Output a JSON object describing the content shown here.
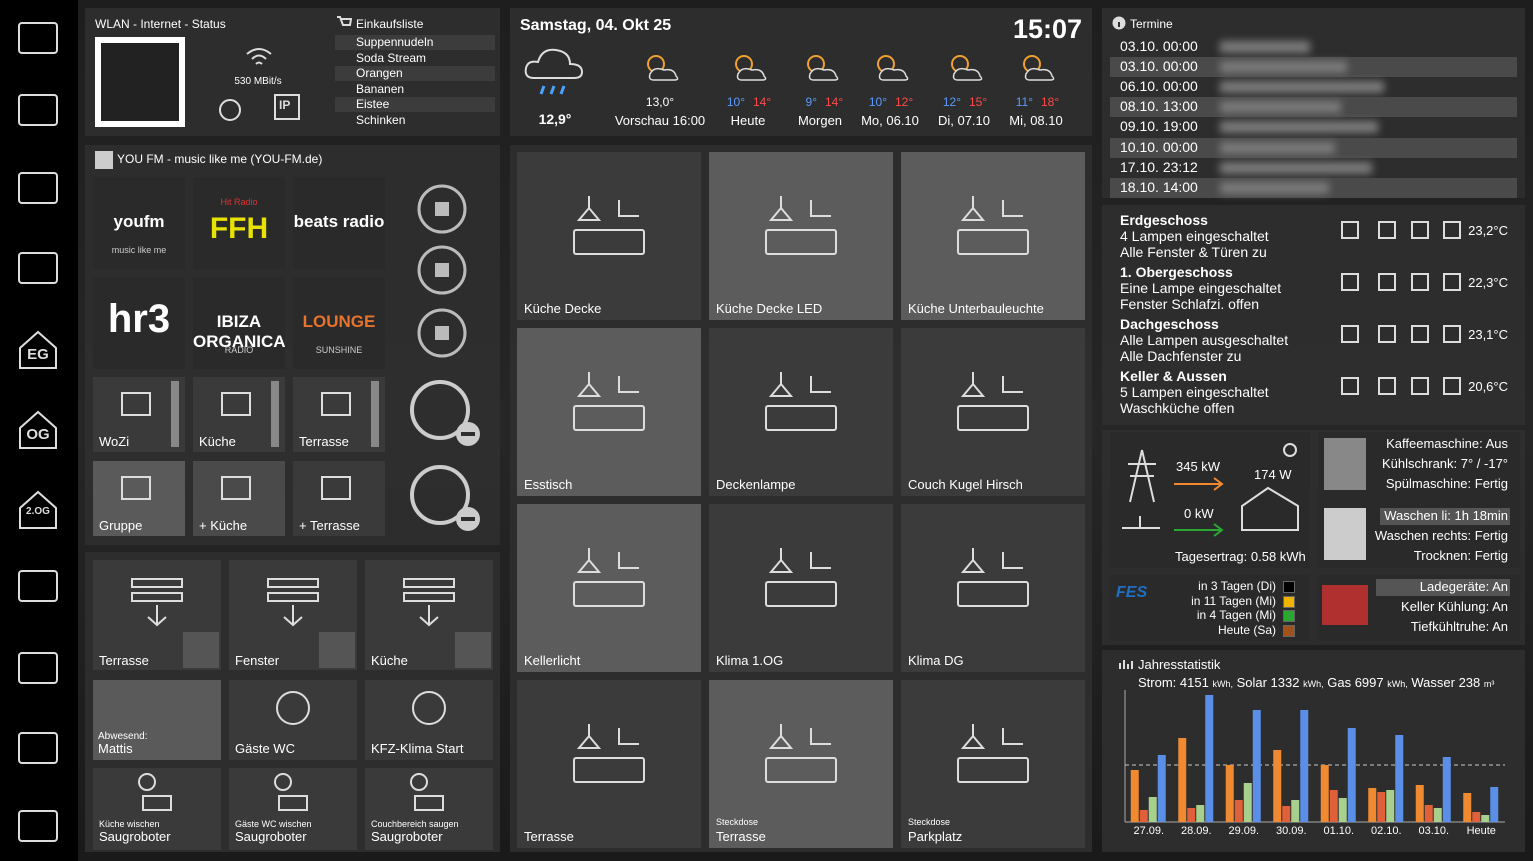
{
  "sidebar": {
    "floors": [
      "EG",
      "OG",
      "2.OG"
    ]
  },
  "network": {
    "title": "WLAN - Internet - Status",
    "speed": "530 MBit/s",
    "ip": "IP"
  },
  "shopping": {
    "title": "Einkaufsliste",
    "items": [
      "Suppennudeln",
      "Soda Stream",
      "Orangen",
      "Bananen",
      "Eistee",
      "Schinken"
    ]
  },
  "weather": {
    "date": "Samstag, 04. Okt 25",
    "time": "15:07",
    "current_temp": "12,9°",
    "preview": {
      "temp": "13,0°",
      "label": "Vorschau 16:00"
    },
    "days": [
      {
        "low": "10°",
        "high": "14°",
        "label": "Heute"
      },
      {
        "low": "9°",
        "high": "14°",
        "label": "Morgen"
      },
      {
        "low": "10°",
        "high": "12°",
        "label": "Mo, 06.10"
      },
      {
        "low": "12°",
        "high": "15°",
        "label": "Di, 07.10"
      },
      {
        "low": "11°",
        "high": "18°",
        "label": "Mi, 08.10"
      }
    ]
  },
  "calendar": {
    "title": "Termine",
    "entries": [
      "03.10. 00:00",
      "03.10. 00:00",
      "06.10. 00:00",
      "08.10. 13:00",
      "09.10. 19:00",
      "10.10. 00:00",
      "17.10. 23:12",
      "18.10. 14:00"
    ]
  },
  "radio": {
    "title": "YOU FM - music like me (YOU-FM.de)",
    "stations": [
      {
        "name": "youfm",
        "sub": "music like me"
      },
      {
        "name": "FFH",
        "sub": "Hit Radio"
      },
      {
        "name": "beats radio"
      },
      {
        "name": "hr3"
      },
      {
        "name": "IBIZA ORGANICA",
        "sub": "RADIO"
      },
      {
        "name": "LOUNGE",
        "sub": "SUNSHINE"
      }
    ],
    "rooms": [
      "WoZi",
      "Küche",
      "Terrasse",
      "Gruppe",
      "+ Küche",
      "+ Terrasse"
    ]
  },
  "controls": {
    "shutters": [
      "Terrasse",
      "Fenster",
      "Küche"
    ],
    "presence": {
      "sub": "Abwesend:",
      "label": "Mattis"
    },
    "buttons": [
      "Gäste WC",
      "KFZ-Klima Start"
    ],
    "vacuum": [
      {
        "sub": "Küche wischen",
        "label": "Saugroboter"
      },
      {
        "sub": "Gäste WC wischen",
        "label": "Saugroboter"
      },
      {
        "sub": "Couchbereich saugen",
        "label": "Saugroboter"
      }
    ]
  },
  "tiles": [
    {
      "label": "Küche Decke"
    },
    {
      "label": "Küche Decke LED"
    },
    {
      "label": "Küche Unterbauleuchte"
    },
    {
      "label": "Esstisch"
    },
    {
      "label": "Deckenlampe"
    },
    {
      "label": "Couch Kugel Hirsch"
    },
    {
      "label": "Kellerlicht"
    },
    {
      "label": "Klima 1.OG"
    },
    {
      "label": "Klima DG"
    },
    {
      "label": "Terrasse"
    },
    {
      "sub": "Steckdose",
      "label": "Terrasse"
    },
    {
      "sub": "Steckdose",
      "label": "Parkplatz"
    }
  ],
  "floors": [
    {
      "name": "Erdgeschoss",
      "lines": [
        "4 Lampen eingeschaltet",
        "Alle Fenster & Türen zu"
      ],
      "temp": "23,2°C"
    },
    {
      "name": "1. Obergeschoss",
      "lines": [
        "Eine Lampe eingeschaltet",
        "Fenster Schlafzi. offen"
      ],
      "temp": "22,3°C"
    },
    {
      "name": "Dachgeschoss",
      "lines": [
        "Alle Lampen ausgeschaltet",
        "Alle Dachfenster zu"
      ],
      "temp": "23,1°C"
    },
    {
      "name": "Keller & Aussen",
      "lines": [
        "5 Lampen eingeschaltet",
        "Waschküche offen"
      ],
      "temp": "20,6°C"
    }
  ],
  "energy": {
    "grid": "345 kW",
    "solar": "174 W",
    "water": "0 kW",
    "yield": "Tagesertrag: 0.58 kWh"
  },
  "appliances": [
    "Kaffeemaschine: Aus",
    "Kühlschrank: 7° / -17°",
    "Spülmaschine: Fertig"
  ],
  "laundry": [
    "Waschen li: 1h 18min",
    "Waschen rechts: Fertig",
    "Trocknen: Fertig"
  ],
  "waste": {
    "logo": "FES",
    "items": [
      {
        "text": "in 3 Tagen (Di)",
        "color": "#000000"
      },
      {
        "text": "in 11 Tagen (Mi)",
        "color": "#f0b400"
      },
      {
        "text": "in 4 Tagen (Mi)",
        "color": "#2aa832"
      },
      {
        "text": "Heute (Sa)",
        "color": "#a0521a"
      }
    ]
  },
  "charger": [
    "Ladegeräte: An",
    "Keller Kühlung: An",
    "Tiefkühltruhe: An"
  ],
  "chart_data": {
    "type": "bar",
    "title": "Jahresstatistik",
    "summary": [
      {
        "text": "Strom: 4151",
        "unit": "kWh,"
      },
      {
        "text": "Solar 1332",
        "unit": "kWh,"
      },
      {
        "text": "Gas 6997",
        "unit": "kWh,"
      },
      {
        "text": "Wasser 238",
        "unit": "m³"
      }
    ],
    "categories": [
      "27.09.",
      "28.09.",
      "29.09.",
      "30.09.",
      "01.10.",
      "02.10.",
      "03.10.",
      "Heute"
    ],
    "series": [
      {
        "color": "#f08a30",
        "values": [
          52,
          84,
          57,
          72,
          57,
          34,
          37,
          29
        ]
      },
      {
        "color": "#e0603a",
        "values": [
          12,
          14,
          22,
          16,
          32,
          30,
          17,
          10
        ]
      },
      {
        "color": "#a8d08d",
        "values": [
          25,
          17,
          39,
          22,
          24,
          32,
          14,
          7
        ]
      },
      {
        "color": "#5b8ee6",
        "values": [
          67,
          127,
          112,
          112,
          94,
          87,
          65,
          35
        ]
      }
    ],
    "ylim": [
      0,
      132
    ]
  }
}
